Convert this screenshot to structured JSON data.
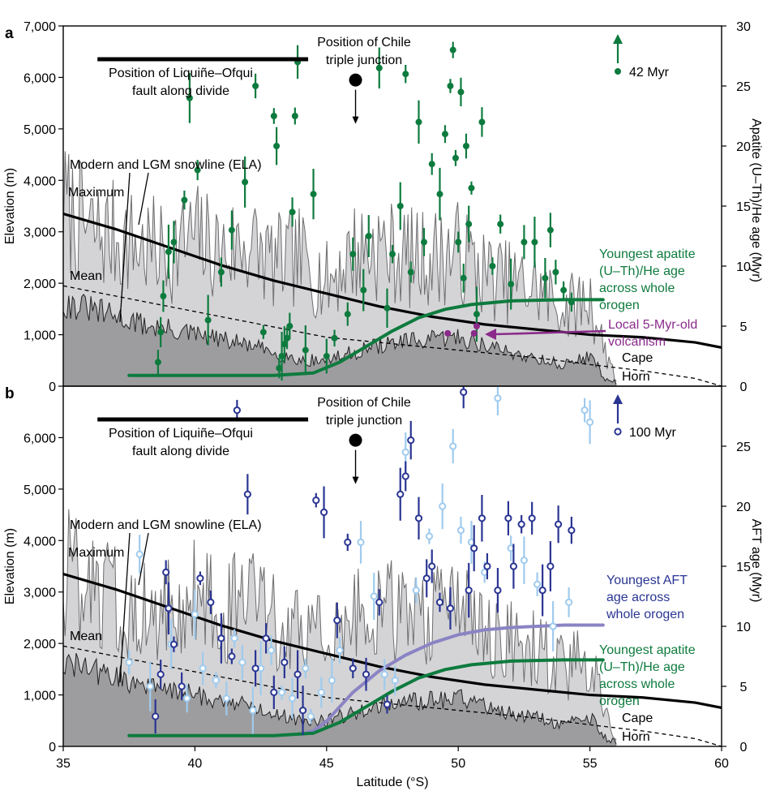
{
  "colors": {
    "maximum_fill": "#d4d4d6",
    "mean_fill": "#9d9d9f",
    "profile_line": "#6e6e70",
    "snowline": "#000000",
    "apatite": "#0e7b3e",
    "aft_dark": "#2a3593",
    "aft_light": "#9fcbee",
    "aft_curve": "#8a84c4",
    "volcanism": "#8a2a8a"
  },
  "icons": [
    "filled-circle-marker",
    "open-circle-marker",
    "arrow-up-icon",
    "arrow-down-icon"
  ],
  "x_axis": {
    "label": "Latitude (°S)",
    "range": [
      35,
      60
    ],
    "ticks": [
      "35",
      "40",
      "45",
      "50",
      "55",
      "60"
    ]
  },
  "left_axis": {
    "label": "Elevation (m)",
    "range": [
      0,
      7000
    ],
    "ticks": [
      "0",
      "1,000",
      "2,000",
      "3,000",
      "4,000",
      "5,000",
      "6,000",
      "7,000"
    ]
  },
  "panels": [
    {
      "letter": "a",
      "right_axis": {
        "label": "Apatite (U–Th)/He age (Myr)",
        "range": [
          0,
          30
        ],
        "ticks": [
          "0",
          "5",
          "10",
          "15",
          "20",
          "25",
          "30"
        ]
      },
      "annotations": {
        "lofz": "Position of Liquiñe–Ofqui\nfault along divide",
        "ctj": "Position of Chile\ntriple junction",
        "snowline": "Modern and LGM snowline (ELA)",
        "maximum": "Maximum",
        "mean": "Mean",
        "offscale": "42 Myr",
        "youngest": "Youngest apatite\n(U–Th)/He age\nacross whole\norogen",
        "volcanism": "Local 5-Myr-old\nvolcanism",
        "cape": "Cape",
        "horn": "Horn"
      }
    },
    {
      "letter": "b",
      "right_axis": {
        "label": "AFT age (Myr)",
        "range": [
          0,
          30
        ],
        "ticks": [
          "0",
          "5",
          "10",
          "15",
          "20",
          "25"
        ]
      },
      "annotations": {
        "lofz": "Position of Liquiñe–Ofqui\nfault along divide",
        "ctj": "Position of Chile\ntriple junction",
        "snowline": "Modern and LGM snowline (ELA)",
        "maximum": "Maximum",
        "mean": "Mean",
        "offscale": "100 Myr",
        "youngest_aft": "Youngest AFT\nage across\nwhole orogen",
        "youngest": "Youngest apatite\n(U–Th)/He age\nacross whole\norogen",
        "cape": "Cape",
        "horn": "Horn"
      }
    }
  ],
  "chart_data": [
    {
      "type": "scatter",
      "panel": "a",
      "xlabel": "Latitude (°S)",
      "ylabel": "Elevation (m)",
      "y2label": "Apatite (U–Th)/He age (Myr)",
      "xlim": [
        35,
        60
      ],
      "ylim": [
        0,
        7000
      ],
      "y2lim": [
        0,
        30
      ],
      "lofz_bar_lat": [
        36.3,
        44.3
      ],
      "ctj": {
        "lat": 46.1,
        "age": 25.5
      },
      "series": [
        {
          "name": "Maximum",
          "x": [
            35,
            36,
            37,
            38,
            39,
            40,
            41,
            42,
            43,
            44,
            45,
            46,
            47,
            48,
            49,
            50,
            51,
            52,
            53,
            54,
            55,
            55.5,
            56
          ],
          "y": [
            3500,
            3000,
            2900,
            2700,
            2600,
            2900,
            2600,
            2800,
            2400,
            2500,
            2000,
            2600,
            2700,
            2500,
            2500,
            2600,
            2200,
            2000,
            1900,
            1500,
            1700,
            800,
            200
          ]
        },
        {
          "name": "Mean",
          "x": [
            35,
            36,
            37,
            38,
            39,
            40,
            41,
            42,
            43,
            44,
            45,
            46,
            47,
            48,
            49,
            50,
            51,
            52,
            53,
            54,
            55,
            55.5,
            56
          ],
          "y": [
            1600,
            1500,
            1350,
            1200,
            1100,
            1000,
            900,
            800,
            650,
            500,
            500,
            650,
            800,
            850,
            900,
            950,
            800,
            650,
            550,
            400,
            600,
            200,
            50
          ]
        },
        {
          "name": "Modern and LGM snowline (ELA)",
          "x": [
            35,
            37,
            39,
            41,
            43,
            45,
            47,
            49,
            51,
            53,
            55,
            57,
            59,
            60
          ],
          "y": [
            3350,
            3050,
            2700,
            2350,
            2050,
            1800,
            1550,
            1350,
            1200,
            1100,
            1000,
            950,
            850,
            750
          ]
        },
        {
          "name": "Mean snowline",
          "x": [
            35,
            37,
            39,
            41,
            43,
            45,
            47,
            49,
            51,
            53,
            55,
            57,
            59,
            60
          ],
          "y": [
            1950,
            1750,
            1550,
            1350,
            1150,
            950,
            850,
            750,
            650,
            550,
            420,
            300,
            150,
            0
          ]
        },
        {
          "name": "Youngest apatite (U–Th)/He age across whole orogen",
          "x": [
            37.5,
            40,
            43,
            44.5,
            45.5,
            46.5,
            47.5,
            48.5,
            49.5,
            50.5,
            52,
            54,
            55.5
          ],
          "y_age": [
            0.9,
            0.9,
            0.9,
            1.1,
            2.0,
            3.3,
            4.6,
            5.7,
            6.4,
            6.8,
            7.1,
            7.2,
            7.2
          ]
        },
        {
          "name": "Apatite (U–Th)/He ages",
          "lat": [
            38.6,
            38.8,
            39.0,
            38.7,
            39.2,
            39.6,
            39.8,
            40.1,
            40.5,
            41.0,
            41.4,
            41.9,
            42.3,
            42.6,
            43.0,
            43.1,
            43.2,
            43.3,
            43.4,
            43.5,
            43.6,
            43.7,
            43.8,
            43.9,
            44.2,
            44.5,
            45.0,
            45.3,
            45.8,
            46.0,
            46.4,
            46.6,
            47.0,
            47.3,
            47.5,
            47.8,
            48.0,
            48.2,
            48.5,
            48.7,
            49.0,
            49.3,
            49.5,
            49.7,
            49.8,
            49.9,
            50.0,
            50.1,
            50.2,
            50.3,
            50.4,
            50.5,
            50.7,
            50.9,
            51.3,
            51.6,
            52.0,
            52.5,
            52.9,
            53.3,
            53.5,
            53.7,
            54.0,
            54.3
          ],
          "age": [
            2.0,
            7.5,
            11.2,
            4.5,
            12.0,
            15.5,
            24.0,
            18.0,
            5.5,
            9.5,
            13.0,
            17.0,
            25.0,
            4.5,
            22.5,
            20.0,
            1.5,
            2.5,
            3.5,
            4.0,
            5.0,
            14.5,
            22.5,
            27.0,
            3.0,
            16.0,
            2.5,
            4.0,
            6.0,
            11.0,
            8.0,
            12.5,
            26.5,
            6.5,
            11.0,
            15.0,
            26.0,
            9.5,
            22.0,
            12.0,
            18.5,
            16.0,
            21.0,
            25.0,
            28.0,
            19.0,
            12.0,
            24.5,
            9.0,
            20.0,
            13.5,
            16.5,
            6.0,
            22.0,
            10.0,
            13.5,
            8.5,
            12.0,
            12.0,
            9.0,
            13.0,
            9.5,
            8.0,
            7.0
          ]
        },
        {
          "name": "Local 5-Myr-old volcanism",
          "lat": [
            49.6,
            50.6,
            50.7
          ],
          "age": [
            4.4,
            4.4,
            5.0
          ]
        }
      ]
    },
    {
      "type": "scatter",
      "panel": "b",
      "xlabel": "Latitude (°S)",
      "ylabel": "Elevation (m)",
      "y2label": "AFT age (Myr)",
      "xlim": [
        35,
        60
      ],
      "ylim": [
        0,
        7000
      ],
      "y2lim": [
        0,
        30
      ],
      "lofz_bar_lat": [
        36.3,
        44.3
      ],
      "ctj": {
        "lat": 46.1,
        "age": 25.5
      },
      "series": [
        {
          "name": "Maximum",
          "x": [
            35,
            36,
            37,
            38,
            39,
            40,
            41,
            42,
            43,
            44,
            45,
            46,
            47,
            48,
            49,
            50,
            51,
            52,
            53,
            54,
            55,
            55.5,
            56
          ],
          "y": [
            3500,
            3000,
            2900,
            2700,
            2600,
            2900,
            2600,
            2800,
            2400,
            2500,
            2000,
            2600,
            2700,
            2500,
            2500,
            2600,
            2200,
            2000,
            1900,
            1500,
            1700,
            800,
            200
          ]
        },
        {
          "name": "Mean",
          "x": [
            35,
            36,
            37,
            38,
            39,
            40,
            41,
            42,
            43,
            44,
            45,
            46,
            47,
            48,
            49,
            50,
            51,
            52,
            53,
            54,
            55,
            55.5,
            56
          ],
          "y": [
            1600,
            1500,
            1350,
            1200,
            1100,
            1000,
            900,
            800,
            650,
            500,
            500,
            650,
            800,
            850,
            900,
            950,
            800,
            650,
            550,
            400,
            600,
            200,
            50
          ]
        },
        {
          "name": "Modern and LGM snowline (ELA)",
          "x": [
            35,
            37,
            39,
            41,
            43,
            45,
            47,
            49,
            51,
            53,
            55,
            57,
            59,
            60
          ],
          "y": [
            3350,
            3050,
            2700,
            2350,
            2050,
            1800,
            1550,
            1350,
            1200,
            1100,
            1000,
            950,
            850,
            750
          ]
        },
        {
          "name": "Mean snowline",
          "x": [
            35,
            37,
            39,
            41,
            43,
            45,
            47,
            49,
            51,
            53,
            55,
            57,
            59,
            60
          ],
          "y": [
            1950,
            1750,
            1550,
            1350,
            1150,
            950,
            850,
            750,
            650,
            550,
            420,
            300,
            150,
            0
          ]
        },
        {
          "name": "Youngest AFT age across whole orogen",
          "x": [
            44,
            44.5,
            45,
            45.5,
            46,
            47,
            48,
            49,
            50,
            51,
            52,
            53,
            54,
            55.5
          ],
          "y_age": [
            1.0,
            1.3,
            2.1,
            3.3,
            4.5,
            6.3,
            7.6,
            8.6,
            9.3,
            9.7,
            9.9,
            10.0,
            10.1,
            10.1
          ]
        },
        {
          "name": "Youngest apatite (U–Th)/He age across whole orogen",
          "x": [
            37.5,
            40,
            43,
            44.5,
            45.5,
            46.5,
            47.5,
            48.5,
            49.5,
            50.5,
            52,
            54,
            55.5
          ],
          "y_age": [
            0.9,
            0.9,
            0.9,
            1.1,
            2.0,
            3.3,
            4.6,
            5.7,
            6.4,
            6.8,
            7.1,
            7.2,
            7.2
          ]
        },
        {
          "name": "AFT ages (dark)",
          "lat": [
            38.5,
            38.7,
            38.9,
            39.0,
            39.2,
            39.5,
            40.2,
            40.6,
            41.0,
            41.4,
            41.6,
            42.0,
            42.3,
            42.7,
            43.0,
            43.4,
            43.9,
            44.1,
            44.6,
            44.9,
            45.4,
            45.8,
            46.0,
            46.5,
            47.0,
            47.3,
            47.8,
            48.0,
            48.2,
            48.5,
            48.8,
            49.0,
            49.3,
            49.7,
            50.2,
            50.4,
            50.6,
            50.9,
            51.1,
            51.5,
            51.9,
            52.1,
            52.4,
            52.8,
            53.2,
            53.5,
            53.8,
            54.3
          ],
          "age": [
            2.5,
            6.0,
            14.5,
            11.5,
            8.5,
            5.0,
            14.0,
            12.0,
            9.0,
            7.5,
            28.0,
            21.0,
            6.5,
            9.0,
            4.5,
            7.0,
            6.0,
            3.0,
            20.5,
            19.5,
            10.5,
            17.0,
            6.5,
            6.0,
            12.0,
            3.5,
            21.0,
            22.5,
            25.5,
            19.0,
            14.0,
            15.0,
            12.0,
            11.5,
            29.5,
            13.0,
            16.5,
            19.0,
            15.0,
            13.0,
            19.0,
            15.0,
            18.5,
            19.0,
            13.0,
            15.0,
            18.5,
            18.0
          ]
        },
        {
          "name": "AFT ages (light)",
          "lat": [
            37.5,
            37.9,
            38.3,
            39.1,
            39.7,
            40.0,
            40.3,
            40.8,
            41.2,
            41.5,
            41.8,
            42.2,
            42.5,
            42.9,
            43.3,
            43.7,
            44.2,
            44.4,
            44.8,
            45.2,
            45.5,
            46.3,
            46.8,
            47.2,
            47.6,
            48.0,
            48.4,
            48.9,
            49.4,
            49.8,
            50.1,
            50.5,
            51.0,
            51.5,
            52.0,
            52.5,
            53.0,
            53.6,
            54.2,
            54.8,
            55.0
          ],
          "age": [
            7.0,
            16.0,
            5.0,
            8.5,
            4.0,
            11.0,
            6.5,
            5.5,
            4.0,
            9.0,
            7.0,
            3.0,
            6.5,
            8.0,
            4.5,
            4.0,
            6.5,
            2.5,
            4.5,
            5.5,
            8.0,
            17.0,
            12.5,
            6.0,
            5.5,
            24.5,
            13.0,
            17.5,
            20.0,
            25.0,
            18.0,
            17.0,
            14.5,
            29.0,
            16.5,
            15.5,
            13.5,
            10.0,
            12.0,
            28.0,
            27.0
          ]
        }
      ]
    }
  ]
}
